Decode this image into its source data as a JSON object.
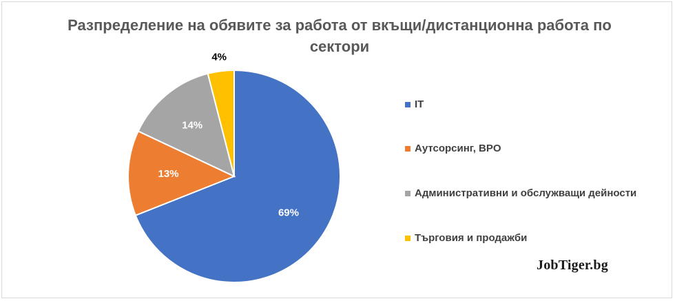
{
  "chart_data": {
    "type": "pie",
    "title": "Разпределение на обявите за работа от вкъщи/дистанционна работа по сектори",
    "categories": [
      "IT",
      "Аутсорсинг, BPO",
      "Административни и обслужващи дейности",
      "Търговия и продажби"
    ],
    "values": [
      69,
      13,
      14,
      4
    ],
    "labels": [
      "69%",
      "13%",
      "14%",
      "4%"
    ],
    "colors": [
      "#4472C4",
      "#ED7D31",
      "#A5A5A5",
      "#FFC000"
    ],
    "label_colors": [
      "#ffffff",
      "#ffffff",
      "#ffffff",
      "#000000"
    ],
    "legend_position": "right"
  },
  "watermark": "JobTiger.bg"
}
